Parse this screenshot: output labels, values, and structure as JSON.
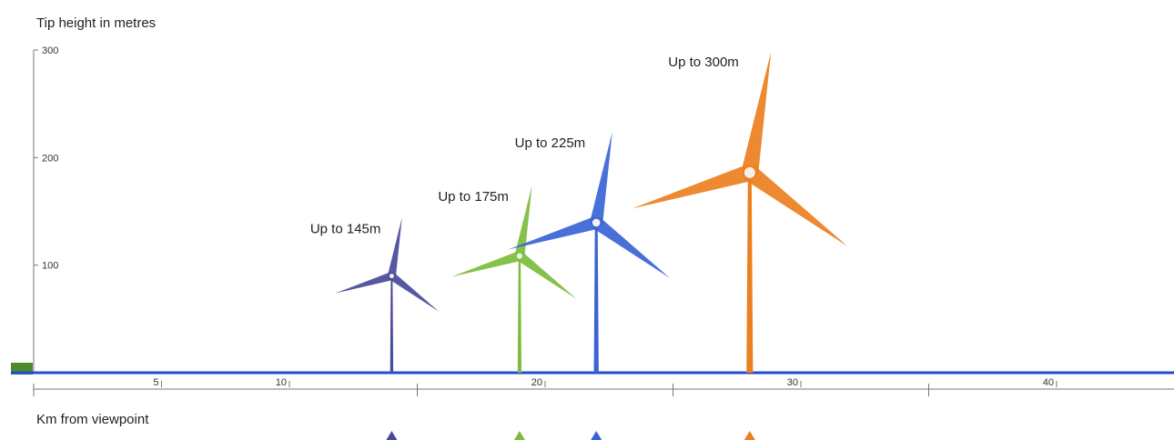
{
  "chart_data": {
    "type": "bar",
    "ylabel": "Tip height in metres",
    "xlabel": "Km from viewpoint",
    "yticks": [
      100,
      200,
      300
    ],
    "xticks": [
      5,
      10,
      20,
      30,
      40
    ],
    "ylim": [
      0,
      300
    ],
    "xlim": [
      0,
      45
    ],
    "grid": false,
    "turbines": [
      {
        "label": "Up to 145m",
        "distance_km": 14,
        "tip_height_m": 145,
        "color": "#4a4a9a"
      },
      {
        "label": "Up to 175m",
        "distance_km": 19,
        "tip_height_m": 175,
        "color": "#7cbc3c"
      },
      {
        "label": "Up to 225m",
        "distance_km": 22,
        "tip_height_m": 225,
        "color": "#3a63d6"
      },
      {
        "label": "Up to 300m",
        "distance_km": 28,
        "tip_height_m": 300,
        "color": "#ec7f1e"
      }
    ]
  },
  "colors": {
    "ground_line": "#1f4fd1",
    "ground_marker": "#4f8a2a",
    "axis": "#777777"
  }
}
